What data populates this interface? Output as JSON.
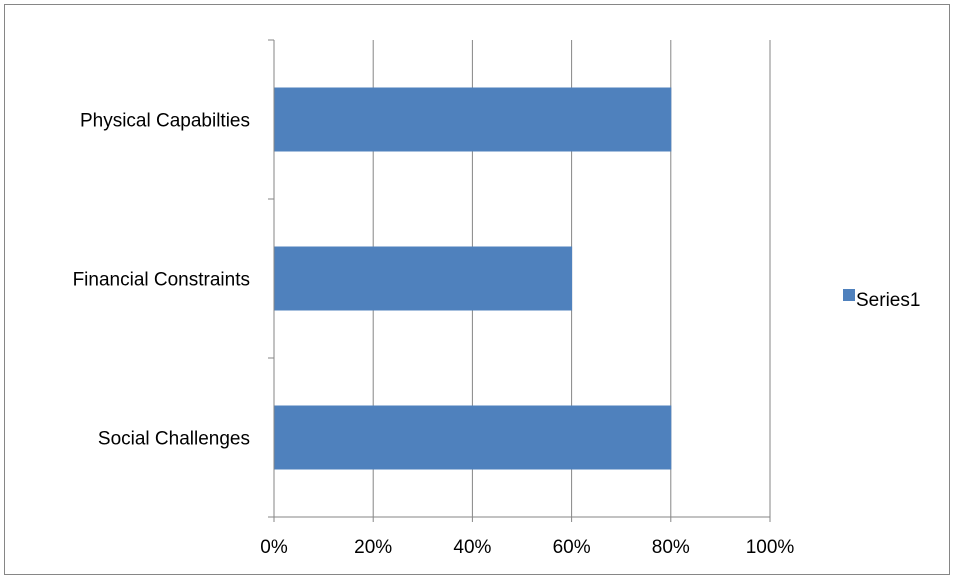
{
  "chart_data": {
    "type": "bar",
    "orientation": "horizontal",
    "categories": [
      "Social Challenges",
      "Financial Constraints",
      "Physical Capabilties"
    ],
    "series": [
      {
        "name": "Series1",
        "values": [
          80,
          60,
          80
        ],
        "color": "#4f81bd"
      }
    ],
    "x_ticks": [
      "0%",
      "20%",
      "40%",
      "60%",
      "80%",
      "100%"
    ],
    "xlim": [
      0,
      100
    ],
    "unit": "%",
    "grid": "vertical",
    "grid_color": "#868686",
    "legend": {
      "position": "right",
      "entries": [
        "Series1"
      ]
    },
    "title": "",
    "xlabel": "",
    "ylabel": ""
  }
}
